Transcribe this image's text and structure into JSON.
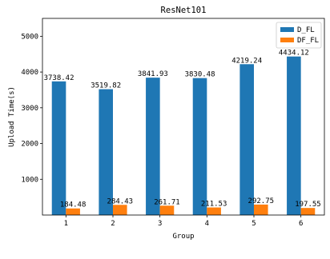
{
  "chart_data": {
    "type": "bar",
    "title": "ResNet101",
    "xlabel": "Group",
    "ylabel": "Upload Time(s)",
    "categories": [
      "1",
      "2",
      "3",
      "4",
      "5",
      "6"
    ],
    "series": [
      {
        "name": "D_FL",
        "color": "#1f77b4",
        "values": [
          3738.42,
          3519.82,
          3841.93,
          3830.48,
          4219.24,
          4434.12
        ],
        "labels": [
          "3738.42",
          "3519.82",
          "3841.93",
          "3830.48",
          "4219.24",
          "4434.12"
        ]
      },
      {
        "name": "DF_FL",
        "color": "#ff7f0e",
        "values": [
          184.48,
          284.43,
          261.71,
          211.53,
          292.75,
          197.55
        ],
        "labels": [
          "184.48",
          "284.43",
          "261.71",
          "211.53",
          "292.75",
          "197.55"
        ]
      }
    ],
    "ylim": [
      0,
      5500
    ],
    "yticks": [
      "1000",
      "2000",
      "3000",
      "4000",
      "5000"
    ],
    "grid": false,
    "legend": "top-right"
  }
}
